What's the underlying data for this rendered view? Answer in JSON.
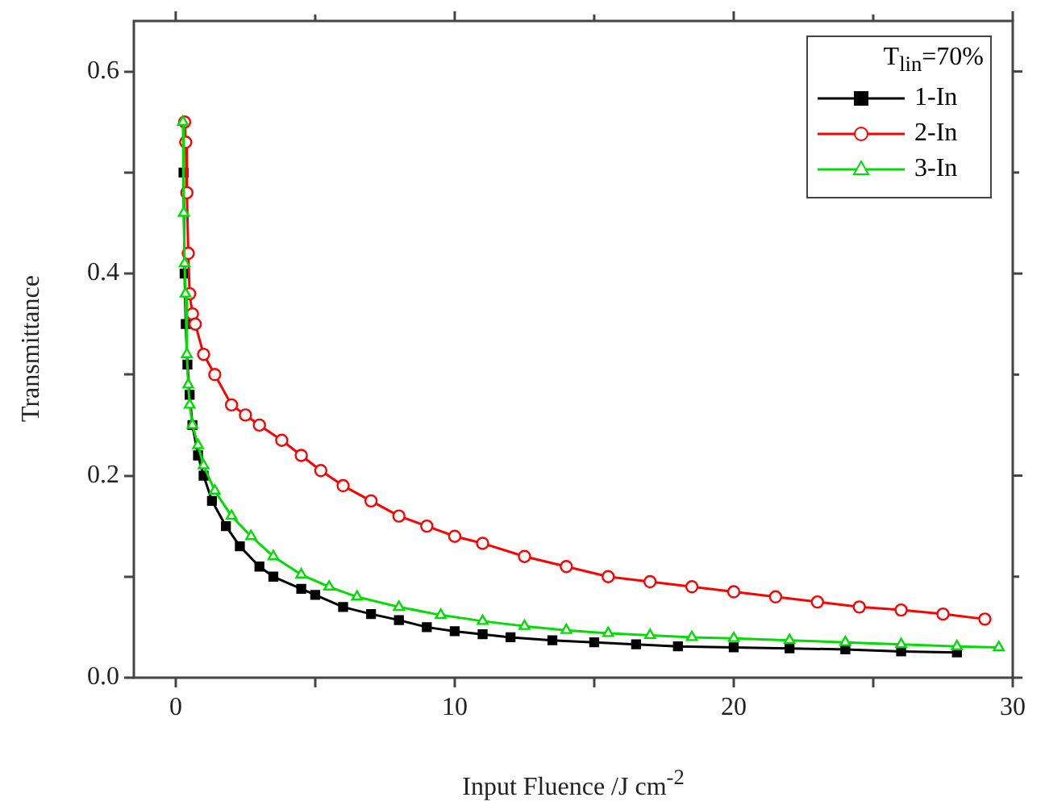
{
  "chart_data": {
    "type": "line",
    "xlabel": "Input Fluence /J cm$^{-2}$",
    "ylabel": "Transmittance",
    "legend_title": "T$_{lin}$=70%",
    "legend": "top right",
    "line_style": "solid",
    "xlim": [
      -1.5,
      30
    ],
    "ylim": [
      0,
      0.65
    ],
    "xticks": [
      0,
      {
        "value": 5,
        "label": null
      },
      10,
      {
        "value": 15,
        "label": null
      },
      20,
      {
        "value": 25,
        "label": null
      },
      30
    ],
    "yticks": [
      {
        "value": 0,
        "label": "0.0"
      },
      {
        "value": 0.1,
        "label": null
      },
      {
        "value": 0.2,
        "label": "0.2"
      },
      {
        "value": 0.3,
        "label": null
      },
      {
        "value": 0.4,
        "label": "0.4"
      },
      {
        "value": 0.5,
        "label": null
      },
      {
        "value": 0.6,
        "label": "0.6"
      }
    ],
    "series": [
      {
        "name": "1-In",
        "color": "#000000",
        "marker": "square",
        "x": [
          0.28,
          0.32,
          0.36,
          0.42,
          0.5,
          0.6,
          0.8,
          1.0,
          1.3,
          1.8,
          2.3,
          3.0,
          3.5,
          4.5,
          5.0,
          6.0,
          7.0,
          8.0,
          9.0,
          10.0,
          11.0,
          12.0,
          13.5,
          15.0,
          16.5,
          18.0,
          20.0,
          22.0,
          24.0,
          26.0,
          28.0
        ],
        "values": [
          0.5,
          0.4,
          0.35,
          0.31,
          0.28,
          0.25,
          0.22,
          0.2,
          0.175,
          0.15,
          0.13,
          0.11,
          0.1,
          0.088,
          0.082,
          0.07,
          0.063,
          0.057,
          0.05,
          0.046,
          0.043,
          0.04,
          0.037,
          0.035,
          0.033,
          0.031,
          0.03,
          0.029,
          0.028,
          0.026,
          0.025
        ]
      },
      {
        "name": "2-In",
        "color": "#ff0000",
        "marker": "circle",
        "x": [
          0.32,
          0.36,
          0.4,
          0.45,
          0.5,
          0.6,
          0.7,
          1.0,
          1.4,
          2.0,
          2.5,
          3.0,
          3.8,
          4.5,
          5.2,
          6.0,
          7.0,
          8.0,
          9.0,
          10.0,
          11.0,
          12.5,
          14.0,
          15.5,
          17.0,
          18.5,
          20.0,
          21.5,
          23.0,
          24.5,
          26.0,
          27.5,
          29.0
        ],
        "values": [
          0.55,
          0.53,
          0.48,
          0.42,
          0.38,
          0.36,
          0.35,
          0.32,
          0.3,
          0.27,
          0.26,
          0.25,
          0.235,
          0.22,
          0.205,
          0.19,
          0.175,
          0.16,
          0.15,
          0.14,
          0.133,
          0.12,
          0.11,
          0.1,
          0.095,
          0.09,
          0.085,
          0.08,
          0.075,
          0.07,
          0.067,
          0.063,
          0.058
        ]
      },
      {
        "name": "3-In",
        "color": "#00dd00",
        "marker": "triangle",
        "x": [
          0.26,
          0.29,
          0.32,
          0.35,
          0.4,
          0.45,
          0.5,
          0.6,
          0.8,
          1.0,
          1.4,
          2.0,
          2.7,
          3.5,
          4.5,
          5.5,
          6.5,
          8.0,
          9.5,
          11.0,
          12.5,
          14.0,
          15.5,
          17.0,
          18.5,
          20.0,
          22.0,
          24.0,
          26.0,
          28.0,
          29.5
        ],
        "values": [
          0.55,
          0.46,
          0.41,
          0.38,
          0.32,
          0.29,
          0.27,
          0.25,
          0.23,
          0.21,
          0.185,
          0.16,
          0.14,
          0.12,
          0.102,
          0.09,
          0.08,
          0.07,
          0.062,
          0.056,
          0.051,
          0.047,
          0.044,
          0.042,
          0.04,
          0.039,
          0.037,
          0.035,
          0.033,
          0.031,
          0.03
        ]
      }
    ]
  }
}
